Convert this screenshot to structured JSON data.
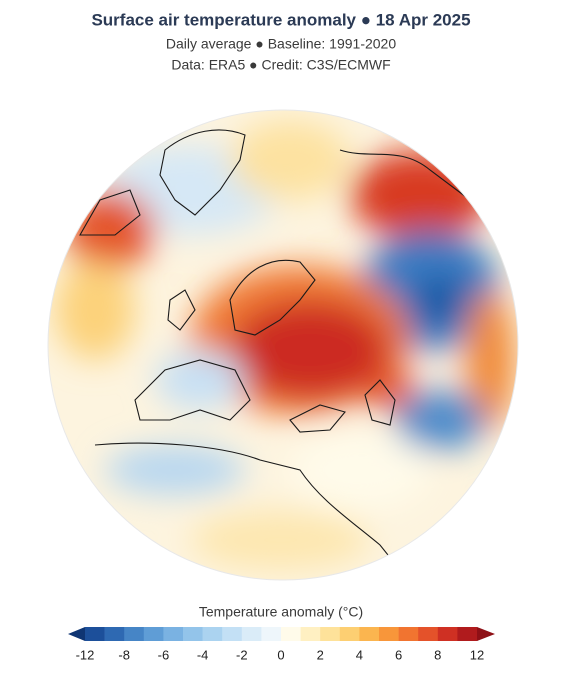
{
  "header": {
    "title": "Surface air temperature anomaly ● 18 Apr 2025",
    "subtitle": "Daily average ● Baseline: 1991-2020",
    "credit": "Data: ERA5 ● Credit: C3S/ECMWF"
  },
  "colorbar": {
    "label": "Temperature anomaly (°C)",
    "bounds": [
      -12,
      -10,
      -8,
      -7,
      -6,
      -5,
      -4,
      -3,
      -2,
      -1,
      0,
      1,
      2,
      3,
      4,
      5,
      6,
      7,
      8,
      10,
      12
    ],
    "colors": [
      "#1c4f9a",
      "#2e69b2",
      "#4685c6",
      "#5f9dd6",
      "#7ab2e2",
      "#93c4ea",
      "#abd3f0",
      "#c3e0f5",
      "#daecf8",
      "#eef6fb",
      "#fffbea",
      "#fff0c2",
      "#fee29a",
      "#fdcf72",
      "#fbb54f",
      "#f8963a",
      "#f17430",
      "#e4522a",
      "#cf3023",
      "#b01b1d"
    ],
    "extend_colors": {
      "under": "#0f3573",
      "over": "#8e1016"
    },
    "ticks": [
      -12,
      -8,
      -6,
      -4,
      -2,
      0,
      2,
      4,
      6,
      8,
      12
    ]
  }
}
